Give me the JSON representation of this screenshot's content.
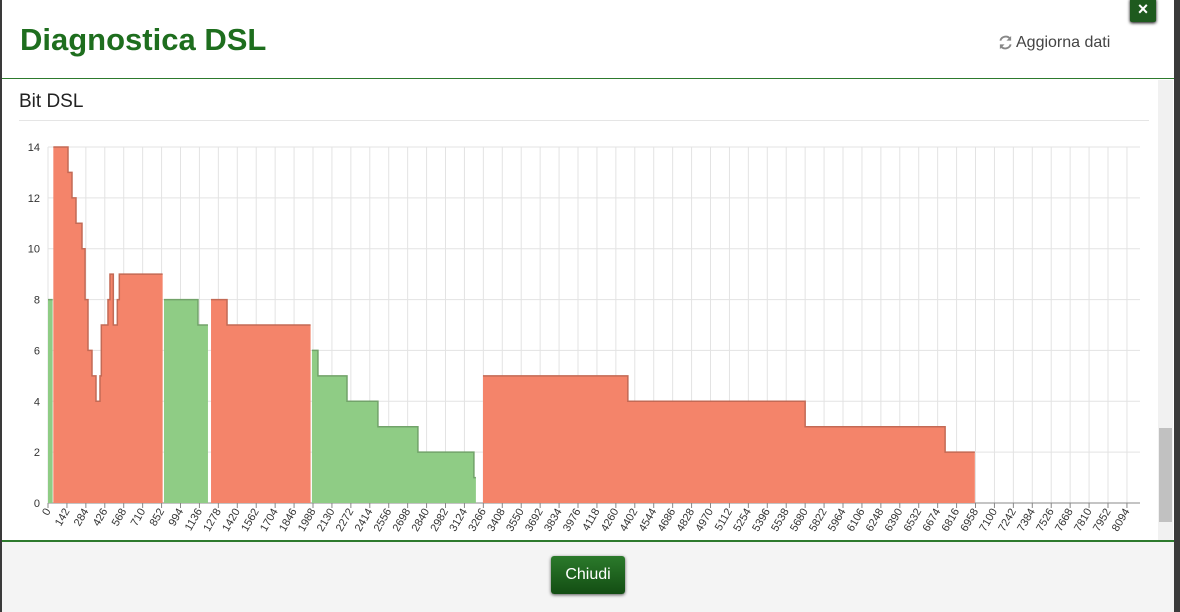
{
  "header": {
    "title": "Diagnostica DSL",
    "refresh": "Aggiorna dati",
    "close_icon": "×"
  },
  "footer": {
    "close_button": "Chiudi"
  },
  "chart_data": {
    "type": "area",
    "title": "Bit DSL",
    "xlim": [
      0,
      8192
    ],
    "ylim": [
      0,
      14
    ],
    "xticks": [
      0,
      142,
      284,
      426,
      568,
      710,
      852,
      994,
      1136,
      1278,
      1420,
      1562,
      1704,
      1846,
      1988,
      2130,
      2272,
      2414,
      2556,
      2698,
      2840,
      2982,
      3124,
      3266,
      3408,
      3550,
      3692,
      3834,
      3976,
      4118,
      4260,
      4402,
      4544,
      4686,
      4828,
      4970,
      5112,
      5254,
      5396,
      5538,
      5680,
      5822,
      5964,
      6106,
      6248,
      6390,
      6532,
      6674,
      6816,
      6958,
      7100,
      7242,
      7384,
      7526,
      7668,
      7810,
      7952,
      8094
    ],
    "yticks": [
      0,
      2,
      4,
      6,
      8,
      10,
      12,
      14
    ],
    "grid": true,
    "series": [
      {
        "color": "#f4846a",
        "x": [
          40,
          150,
          180,
          210,
          255,
          278,
          300,
          330,
          360,
          390,
          400,
          450,
          465,
          490,
          520,
          535,
          855,
          860,
          1223,
          1343,
          1958,
          1970,
          3263,
          4350,
          5680,
          6730,
          6953
        ],
        "values": [
          14,
          13,
          12,
          11,
          10,
          8,
          6,
          5,
          4,
          5,
          7,
          8,
          9,
          7,
          8,
          9,
          9,
          null,
          8,
          7,
          7,
          null,
          5,
          4,
          3,
          2,
          2
        ]
      },
      {
        "color": "#8fcc85",
        "x": [
          0,
          30,
          35,
          870,
          1125,
          1193,
          1200,
          1980,
          2025,
          2243,
          2475,
          2775,
          3195,
          3210
        ],
        "values": [
          8,
          8,
          null,
          8,
          7,
          7,
          null,
          6,
          5,
          4,
          3,
          2,
          1,
          1
        ]
      }
    ]
  }
}
